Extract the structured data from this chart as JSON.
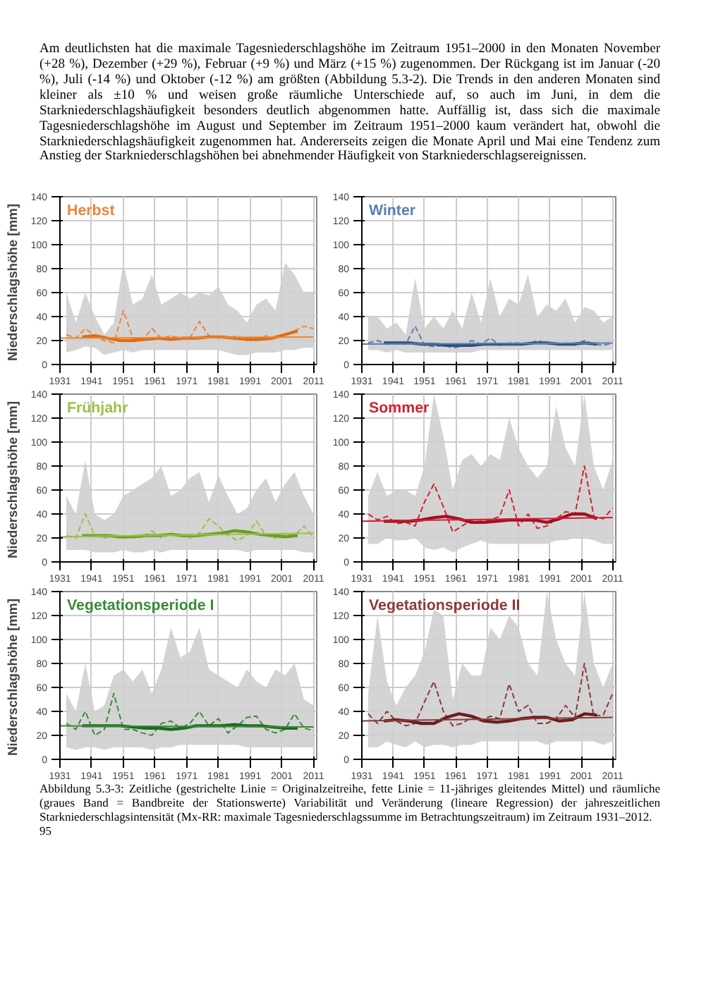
{
  "chart_data": [
    {
      "type": "line",
      "title": "Herbst",
      "ylabel": "Niederschlagshöhe  [mm]",
      "x": [
        1933,
        1936,
        1939,
        1942,
        1945,
        1948,
        1951,
        1954,
        1957,
        1960,
        1963,
        1966,
        1969,
        1972,
        1975,
        1978,
        1981,
        1984,
        1987,
        1990,
        1993,
        1996,
        1999,
        2002,
        2005,
        2008,
        2011
      ],
      "xlim": [
        1931,
        2012
      ],
      "xticks": [
        1931,
        1941,
        1951,
        1961,
        1971,
        1981,
        1991,
        2001,
        2011
      ],
      "ylim": [
        0,
        140
      ],
      "yticks": [
        0,
        20,
        40,
        60,
        80,
        100,
        120,
        140
      ],
      "grid": true,
      "annotations": [
        "Am deutlichsten hat die maximale Tagesniederschlagshöhe im Zeitraum 1951–2000 in den Monaten November (+28 %), Dezember (+29 %), Februar (+9 %) und März (+15 %) zugenommen. Der Rückgang ist im Januar (-20 %), Juli (-14 %) und Oktober (-12 %) am größten (Abbildung 5.3-2). Die Trends in den anderen Monaten sind kleiner als ±10 % und weisen große räumliche Unterschiede auf, so auch im Juni, in dem die Starkniederschlagshäufigkeit besonders deutlich abgenommen hatte. Auffällig ist, dass sich die maximale Tagesniederschlagshöhe im August und September im Zeitraum 1951–2000 kaum verändert hat, obwohl die Starkniederschlagshäufigkeit zugenommen hat. Andererseits zeigen die Monate April und Mai eine Tendenz zum Anstieg der Starkniederschlagshöhen bei abnehmender Häufigkeit von Starkniederschlagsereignissen."
      ],
      "series": [
        {
          "color": "#e8873a",
          "line_style": "dashed",
          "values": [
            25,
            22,
            30,
            24,
            20,
            18,
            45,
            22,
            20,
            30,
            22,
            24,
            22,
            22,
            36,
            24,
            22,
            22,
            24,
            20,
            20,
            24,
            22,
            24,
            28,
            32,
            30
          ],
          "upper": [
            60,
            35,
            60,
            40,
            25,
            35,
            85,
            50,
            55,
            75,
            50,
            55,
            60,
            55,
            60,
            58,
            65,
            50,
            45,
            35,
            50,
            55,
            45,
            85,
            75,
            60,
            60
          ],
          "lower": [
            10,
            12,
            15,
            14,
            8,
            10,
            12,
            10,
            12,
            12,
            12,
            12,
            12,
            12,
            12,
            12,
            12,
            10,
            8,
            8,
            10,
            10,
            10,
            12,
            12,
            14,
            14
          ]
        },
        {
          "color": "#e06c10",
          "line_style": "solid",
          "x": [
            1938,
            1942,
            1946,
            1950,
            1954,
            1958,
            1962,
            1966,
            1970,
            1974,
            1978,
            1982,
            1986,
            1990,
            1994,
            1998,
            2002,
            2006
          ],
          "values": [
            23,
            24,
            22,
            20,
            20,
            21,
            22,
            21,
            22,
            22,
            23,
            23,
            22,
            21,
            21,
            22,
            25,
            28
          ]
        },
        {
          "color": "#e8873a",
          "line_style": "solid",
          "x": [
            1931,
            2011
          ],
          "values": [
            22,
            23
          ]
        }
      ]
    },
    {
      "type": "line",
      "title": "Winter",
      "x": [
        1933,
        1936,
        1939,
        1942,
        1945,
        1948,
        1951,
        1954,
        1957,
        1960,
        1963,
        1966,
        1969,
        1972,
        1975,
        1978,
        1981,
        1984,
        1987,
        1990,
        1993,
        1996,
        1999,
        2002,
        2005,
        2008,
        2011
      ],
      "xlim": [
        1931,
        2012
      ],
      "xticks": [
        1931,
        1941,
        1951,
        1961,
        1971,
        1981,
        1991,
        2001,
        2011
      ],
      "ylim": [
        0,
        140
      ],
      "yticks": [
        0,
        20,
        40,
        60,
        80,
        100,
        120,
        140
      ],
      "grid": true,
      "series": [
        {
          "color": "#5a7fb0",
          "line_style": "dashed",
          "values": [
            18,
            20,
            17,
            18,
            17,
            32,
            16,
            15,
            16,
            14,
            15,
            20,
            17,
            22,
            16,
            18,
            18,
            17,
            20,
            18,
            17,
            18,
            16,
            20,
            17,
            16,
            18
          ],
          "upper": [
            40,
            40,
            30,
            35,
            25,
            72,
            30,
            40,
            30,
            45,
            30,
            60,
            35,
            72,
            40,
            55,
            50,
            75,
            40,
            50,
            45,
            55,
            35,
            48,
            45,
            35,
            40
          ],
          "lower": [
            12,
            12,
            10,
            12,
            10,
            10,
            10,
            10,
            10,
            10,
            10,
            10,
            12,
            12,
            12,
            12,
            12,
            12,
            12,
            12,
            12,
            12,
            12,
            12,
            12,
            12,
            12
          ]
        },
        {
          "color": "#2e4f80",
          "line_style": "solid",
          "x": [
            1938,
            1942,
            1946,
            1950,
            1954,
            1958,
            1962,
            1966,
            1970,
            1974,
            1978,
            1982,
            1986,
            1990,
            1994,
            1998,
            2002,
            2006
          ],
          "values": [
            18,
            18,
            18,
            17,
            17,
            16,
            16,
            16,
            17,
            17,
            17,
            17,
            18,
            18,
            17,
            17,
            18,
            17
          ]
        },
        {
          "color": "#5a7fb0",
          "line_style": "solid",
          "x": [
            1931,
            2011
          ],
          "values": [
            17,
            18
          ]
        }
      ]
    },
    {
      "type": "line",
      "title": "Frühjahr",
      "ylabel": "Niederschlagshöhe  [mm]",
      "x": [
        1933,
        1936,
        1939,
        1942,
        1945,
        1948,
        1951,
        1954,
        1957,
        1960,
        1963,
        1966,
        1969,
        1972,
        1975,
        1978,
        1981,
        1984,
        1987,
        1990,
        1993,
        1996,
        1999,
        2002,
        2005,
        2008,
        2011
      ],
      "xlim": [
        1931,
        2012
      ],
      "xticks": [
        1931,
        1941,
        1951,
        1961,
        1971,
        1981,
        1991,
        2001,
        2011
      ],
      "ylim": [
        0,
        140
      ],
      "yticks": [
        0,
        20,
        40,
        60,
        80,
        100,
        120,
        140
      ],
      "grid": true,
      "series": [
        {
          "color": "#9cc04a",
          "line_style": "dashed",
          "values": [
            22,
            20,
            40,
            22,
            20,
            22,
            20,
            22,
            20,
            26,
            20,
            24,
            22,
            20,
            24,
            36,
            30,
            22,
            18,
            22,
            34,
            22,
            20,
            24,
            22,
            30,
            20
          ],
          "upper": [
            55,
            40,
            85,
            40,
            35,
            40,
            55,
            60,
            65,
            70,
            80,
            55,
            60,
            70,
            75,
            50,
            72,
            55,
            40,
            45,
            60,
            70,
            50,
            65,
            75,
            55,
            40
          ],
          "lower": [
            10,
            10,
            10,
            8,
            8,
            8,
            10,
            8,
            8,
            10,
            8,
            10,
            10,
            10,
            10,
            10,
            10,
            10,
            10,
            8,
            10,
            10,
            10,
            10,
            10,
            8,
            8
          ]
        },
        {
          "color": "#6a9e20",
          "line_style": "solid",
          "x": [
            1938,
            1942,
            1946,
            1950,
            1954,
            1958,
            1962,
            1966,
            1970,
            1974,
            1978,
            1982,
            1986,
            1990,
            1994,
            1998,
            2002,
            2006
          ],
          "values": [
            22,
            22,
            22,
            21,
            21,
            22,
            22,
            23,
            22,
            22,
            23,
            24,
            26,
            25,
            23,
            22,
            21,
            22
          ]
        },
        {
          "color": "#9cc04a",
          "line_style": "solid",
          "x": [
            1931,
            2011
          ],
          "values": [
            21,
            24
          ]
        }
      ]
    },
    {
      "type": "line",
      "title": "Sommer",
      "x": [
        1933,
        1936,
        1939,
        1942,
        1945,
        1948,
        1951,
        1954,
        1957,
        1960,
        1963,
        1966,
        1969,
        1972,
        1975,
        1978,
        1981,
        1984,
        1987,
        1990,
        1993,
        1996,
        1999,
        2002,
        2005,
        2008,
        2011
      ],
      "xlim": [
        1931,
        2012
      ],
      "xticks": [
        1931,
        1941,
        1951,
        1961,
        1971,
        1981,
        1991,
        2001,
        2011
      ],
      "ylim": [
        0,
        140
      ],
      "yticks": [
        0,
        20,
        40,
        60,
        80,
        100,
        120,
        140
      ],
      "grid": true,
      "series": [
        {
          "color": "#d02030",
          "line_style": "dashed",
          "values": [
            40,
            35,
            38,
            32,
            33,
            30,
            50,
            65,
            46,
            25,
            30,
            35,
            35,
            35,
            38,
            60,
            30,
            40,
            28,
            30,
            36,
            42,
            40,
            80,
            38,
            36,
            45
          ],
          "upper": [
            55,
            75,
            55,
            60,
            60,
            55,
            80,
            140,
            105,
            60,
            85,
            90,
            80,
            90,
            85,
            120,
            95,
            80,
            70,
            80,
            130,
            95,
            80,
            140,
            80,
            60,
            85
          ],
          "lower": [
            15,
            15,
            20,
            18,
            18,
            20,
            12,
            10,
            12,
            8,
            12,
            15,
            18,
            15,
            15,
            15,
            15,
            15,
            15,
            15,
            18,
            18,
            20,
            20,
            18,
            15,
            15
          ]
        },
        {
          "color": "#a01020",
          "line_style": "solid",
          "x": [
            1938,
            1942,
            1946,
            1950,
            1954,
            1958,
            1962,
            1966,
            1970,
            1974,
            1978,
            1982,
            1986,
            1990,
            1994,
            1998,
            2002,
            2006
          ],
          "values": [
            34,
            34,
            34,
            35,
            37,
            38,
            36,
            33,
            33,
            34,
            35,
            35,
            35,
            33,
            36,
            40,
            40,
            36
          ]
        },
        {
          "color": "#d02030",
          "line_style": "solid",
          "x": [
            1931,
            2011
          ],
          "values": [
            34,
            37
          ]
        }
      ]
    },
    {
      "type": "line",
      "title": "Vegetationsperiode I",
      "ylabel": "Niederschlagshöhe  [mm]",
      "x": [
        1933,
        1936,
        1939,
        1942,
        1945,
        1948,
        1951,
        1954,
        1957,
        1960,
        1963,
        1966,
        1969,
        1972,
        1975,
        1978,
        1981,
        1984,
        1987,
        1990,
        1993,
        1996,
        1999,
        2002,
        2005,
        2008,
        2011
      ],
      "xlim": [
        1931,
        2012
      ],
      "xticks": [
        1931,
        1941,
        1951,
        1961,
        1971,
        1981,
        1991,
        2001,
        2011
      ],
      "ylim": [
        0,
        140
      ],
      "yticks": [
        0,
        20,
        40,
        60,
        80,
        100,
        120,
        140
      ],
      "grid": true,
      "series": [
        {
          "color": "#3a8a3a",
          "line_style": "dashed",
          "values": [
            30,
            25,
            40,
            20,
            25,
            55,
            25,
            25,
            22,
            20,
            30,
            32,
            26,
            30,
            40,
            28,
            34,
            22,
            28,
            35,
            36,
            25,
            22,
            25,
            38,
            26,
            24
          ],
          "upper": [
            55,
            40,
            80,
            40,
            45,
            70,
            75,
            65,
            75,
            55,
            75,
            110,
            85,
            90,
            110,
            75,
            70,
            65,
            60,
            75,
            65,
            60,
            75,
            70,
            80,
            50,
            45
          ],
          "lower": [
            10,
            8,
            10,
            10,
            8,
            10,
            10,
            10,
            10,
            8,
            10,
            10,
            12,
            12,
            12,
            12,
            12,
            12,
            12,
            10,
            10,
            10,
            10,
            10,
            10,
            10,
            10
          ]
        },
        {
          "color": "#1e6a1e",
          "line_style": "solid",
          "x": [
            1938,
            1942,
            1946,
            1950,
            1954,
            1958,
            1962,
            1966,
            1970,
            1974,
            1978,
            1982,
            1986,
            1990,
            1994,
            1998,
            2002,
            2006
          ],
          "values": [
            28,
            28,
            28,
            28,
            27,
            26,
            26,
            25,
            26,
            28,
            28,
            28,
            29,
            28,
            28,
            27,
            26,
            26
          ]
        },
        {
          "color": "#3a8a3a",
          "line_style": "solid",
          "x": [
            1931,
            2011
          ],
          "values": [
            28,
            27
          ]
        }
      ]
    },
    {
      "type": "line",
      "title": "Vegetationsperiode II",
      "x": [
        1933,
        1936,
        1939,
        1942,
        1945,
        1948,
        1951,
        1954,
        1957,
        1960,
        1963,
        1966,
        1969,
        1972,
        1975,
        1978,
        1981,
        1984,
        1987,
        1990,
        1993,
        1996,
        1999,
        2002,
        2005,
        2008,
        2011
      ],
      "xlim": [
        1931,
        2012
      ],
      "xticks": [
        1931,
        1941,
        1951,
        1961,
        1971,
        1981,
        1991,
        2001,
        2011
      ],
      "ylim": [
        0,
        140
      ],
      "yticks": [
        0,
        20,
        40,
        60,
        80,
        100,
        120,
        140
      ],
      "grid": true,
      "annotations": [
        "Abbildung 5.3-3: Zeitliche (gestrichelte Linie = Originalzeitreihe, fette Linie = 11-jähriges gleitendes Mittel) und räumliche (graues Band = Bandbreite der Stationswerte) Variabilität und Veränderung (lineare Regression) der jahreszeitlichen Starkniederschlagsintensität (Mx-RR: maximale Tagesniederschlagssumme im Betrachtungszeitraum) im Zeitraum 1931–2012.",
        "95"
      ],
      "series": [
        {
          "color": "#8a3a3a",
          "line_style": "dashed",
          "values": [
            38,
            30,
            40,
            32,
            28,
            30,
            48,
            65,
            40,
            28,
            30,
            35,
            32,
            36,
            34,
            63,
            40,
            45,
            30,
            30,
            34,
            45,
            35,
            80,
            36,
            37,
            55
          ],
          "upper": [
            55,
            120,
            65,
            45,
            60,
            70,
            90,
            125,
            120,
            50,
            80,
            70,
            70,
            110,
            100,
            120,
            110,
            80,
            70,
            140,
            100,
            80,
            70,
            140,
            80,
            60,
            80
          ],
          "lower": [
            10,
            10,
            15,
            12,
            10,
            15,
            10,
            12,
            12,
            10,
            12,
            12,
            15,
            15,
            15,
            15,
            15,
            15,
            15,
            12,
            15,
            15,
            15,
            15,
            15,
            12,
            15
          ]
        },
        {
          "color": "#6a1e1e",
          "line_style": "solid",
          "x": [
            1938,
            1942,
            1946,
            1950,
            1954,
            1958,
            1962,
            1966,
            1970,
            1974,
            1978,
            1982,
            1986,
            1990,
            1994,
            1998,
            2002,
            2006
          ],
          "values": [
            32,
            33,
            32,
            30,
            30,
            35,
            38,
            36,
            32,
            31,
            32,
            34,
            35,
            35,
            32,
            33,
            38,
            37
          ]
        },
        {
          "color": "#8a3a3a",
          "line_style": "solid",
          "x": [
            1931,
            2011
          ],
          "values": [
            32,
            35
          ]
        }
      ]
    }
  ]
}
